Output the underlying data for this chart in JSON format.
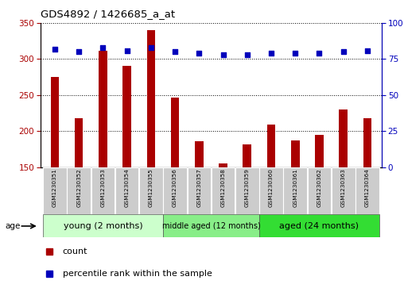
{
  "title": "GDS4892 / 1426685_a_at",
  "samples": [
    "GSM1230351",
    "GSM1230352",
    "GSM1230353",
    "GSM1230354",
    "GSM1230355",
    "GSM1230356",
    "GSM1230357",
    "GSM1230358",
    "GSM1230359",
    "GSM1230360",
    "GSM1230361",
    "GSM1230362",
    "GSM1230363",
    "GSM1230364"
  ],
  "counts": [
    275,
    218,
    312,
    290,
    340,
    247,
    186,
    155,
    182,
    209,
    187,
    195,
    230,
    218
  ],
  "percentiles": [
    82,
    80,
    83,
    81,
    83,
    80,
    79,
    78,
    78,
    79,
    79,
    79,
    80,
    81
  ],
  "ylim_left": [
    150,
    350
  ],
  "ylim_right": [
    0,
    100
  ],
  "yticks_left": [
    150,
    200,
    250,
    300,
    350
  ],
  "yticks_right": [
    0,
    25,
    50,
    75,
    100
  ],
  "bar_color": "#aa0000",
  "dot_color": "#0000bb",
  "group_colors": [
    "#ccffcc",
    "#88ee88",
    "#33dd33"
  ],
  "groups": [
    {
      "label": "young (2 months)",
      "start": 0,
      "end": 5
    },
    {
      "label": "middle aged (12 months)",
      "start": 5,
      "end": 9
    },
    {
      "label": "aged (24 months)",
      "start": 9,
      "end": 14
    }
  ],
  "tick_bg_color": "#cccccc",
  "legend_count_label": "count",
  "legend_pct_label": "percentile rank within the sample",
  "age_label": "age",
  "bg_color": "#ffffff",
  "bar_width": 0.35
}
